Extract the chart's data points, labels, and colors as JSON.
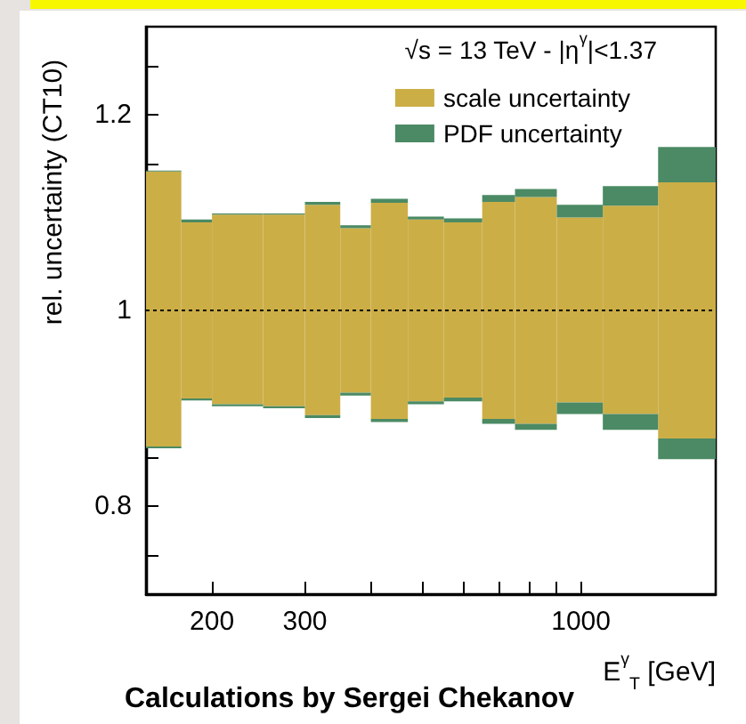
{
  "chart_data": {
    "type": "histogram",
    "ylabel": "rel. uncertainty (CT10)",
    "xlabel": "E$^{γ}$$_{T}$ [GeV]",
    "annotations": [
      "√s = 13 TeV - |η$^{γ}$|<1.37",
      "Calculations by Sergei Chekanov"
    ],
    "bins": [
      150,
      175,
      200,
      250,
      300,
      350,
      400,
      470,
      550,
      650,
      750,
      900,
      1100,
      1400,
      1800
    ],
    "series": [
      {
        "name": "scale uncertainty",
        "color": "#ccae47",
        "base": [
          0.861,
          0.91,
          0.904,
          0.902,
          0.893,
          0.916,
          0.889,
          0.907,
          0.911,
          0.889,
          0.884,
          0.906,
          0.894,
          0.869
        ],
        "values": [
          0.281,
          0.18,
          0.194,
          0.196,
          0.215,
          0.168,
          0.221,
          0.186,
          0.179,
          0.222,
          0.232,
          0.189,
          0.213,
          0.262
        ]
      },
      {
        "name": "PDF uncertainty",
        "color": "#4b8a64",
        "base": [
          1.142,
          1.09,
          1.098,
          1.098,
          1.108,
          1.084,
          1.11,
          1.093,
          1.09,
          1.111,
          1.116,
          1.095,
          1.107,
          1.131
        ],
        "values": [
          0.001,
          0.003,
          0.001,
          0.001,
          0.003,
          0.003,
          0.004,
          0.003,
          0.004,
          0.007,
          0.008,
          0.013,
          0.02,
          0.036
        ]
      },
      {
        "color": "#4b8a64",
        "base": [
          0.859,
          0.908,
          0.902,
          0.9,
          0.89,
          0.913,
          0.886,
          0.904,
          0.907,
          0.884,
          0.878,
          0.894,
          0.878,
          0.848
        ],
        "values": [
          0.002,
          0.002,
          0.002,
          0.002,
          0.003,
          0.003,
          0.003,
          0.003,
          0.004,
          0.005,
          0.006,
          0.012,
          0.016,
          0.021
        ]
      }
    ],
    "log": "x",
    "xlim": [
      150,
      1800
    ],
    "xticks": [
      200,
      300,
      {
        "value": 400,
        "label": null
      },
      {
        "value": 500,
        "label": null
      },
      {
        "value": 600,
        "label": null
      },
      {
        "value": 700,
        "label": null
      },
      {
        "value": 800,
        "label": null
      },
      {
        "value": 900,
        "label": null
      },
      1000
    ],
    "ylim": [
      0.71,
      1.29
    ],
    "yticks": [
      {
        "value": 0.75,
        "label": null
      },
      0.8,
      {
        "value": 0.85,
        "label": null
      },
      {
        "value": 0.9,
        "label": null
      },
      {
        "value": 0.95,
        "label": null
      },
      1,
      {
        "value": 1.05,
        "label": null
      },
      {
        "value": 1.1,
        "label": null
      },
      {
        "value": 1.15,
        "label": null
      },
      1.2,
      {
        "value": 1.25,
        "label": null
      }
    ],
    "ref_lines": [
      {
        "axis": "y",
        "value": 1,
        "color": "#000000",
        "line_style": "dotted"
      }
    ],
    "legend": "top right"
  }
}
